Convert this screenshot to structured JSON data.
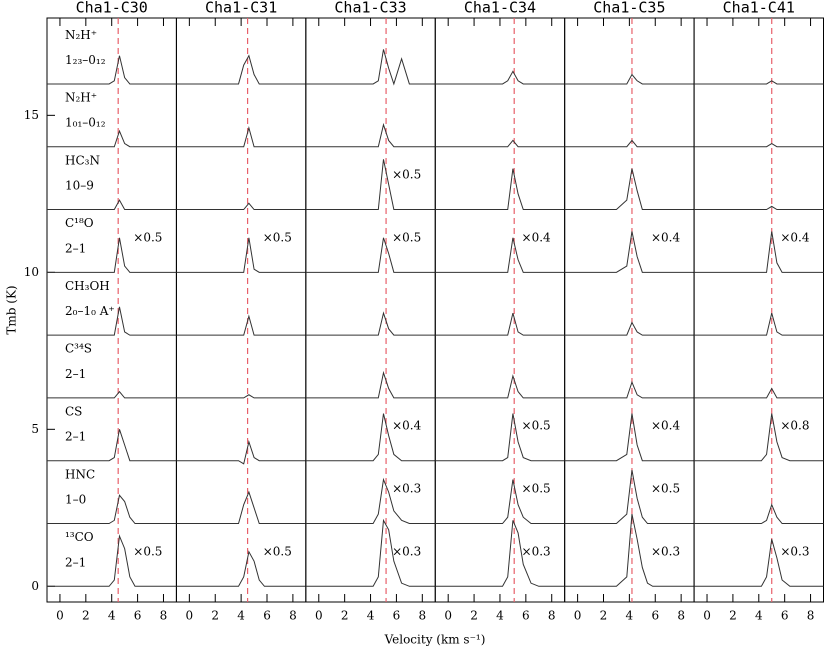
{
  "chart_data": [
    {
      "type": "line",
      "title": "Cha1-C30",
      "xlabel": "Velocity (km s⁻¹)",
      "ylabel": "Tmb (K)",
      "xlim": [
        -1,
        9
      ],
      "xticks": [
        0,
        2,
        4,
        6,
        8
      ],
      "ylim": [
        -0.5,
        18.1
      ],
      "yticks": [
        0,
        5,
        10,
        15
      ],
      "color": "#333333",
      "vline": 4.5,
      "vline_color": "#e8606a",
      "x": [
        -1,
        1,
        3,
        3.8,
        4.2,
        4.6,
        5.0,
        5.4,
        5.8,
        6.4,
        7,
        9
      ],
      "series": [
        {
          "name": "N₂H⁺",
          "transition": "1₂₃–0₁₂",
          "values": [
            16,
            16,
            16,
            16,
            16.1,
            16.9,
            16.2,
            16,
            16,
            16,
            16,
            16
          ]
        },
        {
          "name": "N₂H⁺",
          "transition": "1₀₁–0₁₂",
          "values": [
            14,
            14,
            14,
            14,
            14,
            14.5,
            14.1,
            14,
            14,
            14,
            14,
            14
          ]
        },
        {
          "name": "HC₃N",
          "transition": "10–9",
          "values": [
            12,
            12,
            12,
            12,
            12,
            12.3,
            12,
            12,
            12,
            12,
            12,
            12
          ]
        },
        {
          "name": "C¹⁸O",
          "transition": "2–1",
          "scale_label": "×0.5",
          "values": [
            10,
            10,
            10,
            10,
            10,
            11.1,
            10.2,
            10,
            10,
            10,
            10,
            10
          ]
        },
        {
          "name": "CH₃OH",
          "transition": "2₀–1₀ A⁺",
          "values": [
            8,
            8,
            8,
            8,
            8,
            8.9,
            8.1,
            8,
            8,
            8,
            8,
            8
          ]
        },
        {
          "name": "C³⁴S",
          "transition": "2–1",
          "values": [
            6,
            6,
            6,
            6,
            6,
            6.2,
            6,
            6,
            6,
            6,
            6,
            6
          ]
        },
        {
          "name": "CS",
          "transition": "2–1",
          "values": [
            4,
            4,
            4,
            4,
            4.1,
            5,
            4.5,
            4,
            4,
            4,
            4,
            4
          ]
        },
        {
          "name": "HNC",
          "transition": "1–0",
          "values": [
            2,
            2,
            2,
            2,
            2.1,
            2.9,
            2.7,
            2.2,
            2,
            2,
            2,
            2
          ]
        },
        {
          "name": "¹³CO",
          "transition": "2–1",
          "scale_label": "×0.5",
          "values": [
            0,
            0,
            0,
            0,
            0.2,
            1.6,
            1.2,
            0.3,
            0,
            0,
            0,
            0
          ]
        }
      ]
    },
    {
      "type": "line",
      "title": "Cha1-C31",
      "xlim": [
        -1,
        9
      ],
      "xticks": [
        0,
        2,
        4,
        6,
        8
      ],
      "ylim": [
        -0.5,
        18.1
      ],
      "color": "#333333",
      "vline": 4.5,
      "vline_color": "#e8606a",
      "x": [
        -1,
        1,
        3,
        3.8,
        4.2,
        4.6,
        5.0,
        5.4,
        5.8,
        6.4,
        7,
        9
      ],
      "series": [
        {
          "values": [
            16,
            16,
            16,
            16,
            16.6,
            16.9,
            16.3,
            16,
            16,
            16,
            16,
            16
          ]
        },
        {
          "values": [
            14,
            14,
            14,
            14,
            14,
            14.6,
            14,
            14,
            14,
            14,
            14,
            14
          ]
        },
        {
          "values": [
            12,
            12,
            12,
            12,
            12,
            12.2,
            12,
            12,
            12,
            12,
            12,
            12
          ]
        },
        {
          "scale_label": "×0.5",
          "values": [
            10,
            10,
            10,
            10,
            10,
            11.1,
            10.1,
            10,
            10,
            10,
            10,
            10
          ]
        },
        {
          "values": [
            8,
            8,
            8,
            8,
            8,
            8.6,
            8,
            8,
            8,
            8,
            8,
            8
          ]
        },
        {
          "values": [
            6,
            6,
            6,
            6,
            6,
            6.1,
            6,
            6,
            6,
            6,
            6,
            6
          ]
        },
        {
          "values": [
            4,
            4,
            4,
            4,
            3.9,
            4.6,
            4.1,
            4,
            4,
            4,
            4,
            4
          ]
        },
        {
          "values": [
            2,
            2,
            2,
            2,
            2.6,
            3,
            2.5,
            2,
            2,
            2,
            2,
            2
          ]
        },
        {
          "scale_label": "×0.5",
          "values": [
            0,
            0,
            0,
            0,
            0.3,
            1.1,
            0.8,
            0.2,
            0,
            0,
            0,
            0
          ]
        }
      ]
    },
    {
      "type": "line",
      "title": "Cha1-C33",
      "xlim": [
        -1,
        9
      ],
      "xticks": [
        0,
        2,
        4,
        6,
        8
      ],
      "ylim": [
        -0.5,
        18.1
      ],
      "color": "#333333",
      "vline": 5.2,
      "vline_color": "#e8606a",
      "x": [
        -1,
        1,
        3,
        3.8,
        4.2,
        4.6,
        5.0,
        5.4,
        5.8,
        6.4,
        7,
        9
      ],
      "series": [
        {
          "values": [
            16,
            16,
            16,
            16,
            16,
            16.1,
            17.1,
            16.5,
            16,
            16.8,
            16,
            16
          ]
        },
        {
          "values": [
            14,
            14,
            14,
            14,
            14,
            14,
            14.7,
            14.2,
            14,
            14,
            14,
            14
          ]
        },
        {
          "scale_label": "×0.5",
          "values": [
            12,
            12,
            12,
            12,
            12,
            12,
            13.6,
            12.8,
            12,
            12,
            12,
            12
          ]
        },
        {
          "scale_label": "×0.5",
          "values": [
            10,
            10,
            10,
            10,
            10,
            10,
            11.1,
            10.6,
            10,
            10,
            10,
            10
          ]
        },
        {
          "values": [
            8,
            8,
            8,
            8,
            8,
            8,
            8.7,
            8.2,
            8,
            8,
            8,
            8
          ]
        },
        {
          "values": [
            6,
            6,
            6,
            6,
            6,
            6,
            6.8,
            6.3,
            6,
            6,
            6,
            6
          ]
        },
        {
          "scale_label": "×0.4",
          "values": [
            4,
            4,
            4,
            4,
            4,
            4.2,
            5.5,
            4.8,
            4.2,
            4,
            4,
            4
          ]
        },
        {
          "scale_label": "×0.3",
          "values": [
            2,
            2,
            2,
            2,
            2,
            2.3,
            3.4,
            3,
            2.4,
            2.1,
            2,
            2
          ]
        },
        {
          "scale_label": "×0.3",
          "values": [
            0,
            0,
            0,
            0,
            0,
            0.3,
            2.1,
            1.8,
            0.8,
            0.1,
            0,
            0
          ]
        }
      ]
    },
    {
      "type": "line",
      "title": "Cha1-C34",
      "xlim": [
        -1,
        9
      ],
      "xticks": [
        0,
        2,
        4,
        6,
        8
      ],
      "ylim": [
        -0.5,
        18.1
      ],
      "color": "#333333",
      "vline": 5.1,
      "vline_color": "#e8606a",
      "x": [
        -1,
        1,
        3,
        3.8,
        4.2,
        4.6,
        5.0,
        5.4,
        5.8,
        6.4,
        7,
        9
      ],
      "series": [
        {
          "values": [
            16,
            16,
            16,
            16,
            16,
            16.1,
            16.4,
            16.1,
            16,
            16,
            16,
            16
          ]
        },
        {
          "values": [
            14,
            14,
            14,
            14,
            14,
            14,
            14.2,
            14,
            14,
            14,
            14,
            14
          ]
        },
        {
          "values": [
            12,
            12,
            12,
            12,
            12,
            12,
            13.3,
            12.5,
            12,
            12,
            12,
            12
          ]
        },
        {
          "scale_label": "×0.4",
          "values": [
            10,
            10,
            10,
            10,
            10,
            10,
            11.1,
            10.4,
            10,
            10,
            10,
            10
          ]
        },
        {
          "values": [
            8,
            8,
            8,
            8,
            8,
            8,
            8.7,
            8.1,
            8,
            8,
            8,
            8
          ]
        },
        {
          "values": [
            6,
            6,
            6,
            6,
            6,
            6,
            6.7,
            6.2,
            6,
            6,
            6,
            6
          ]
        },
        {
          "scale_label": "×0.5",
          "values": [
            4,
            4,
            4,
            4,
            4,
            4.1,
            5.5,
            4.6,
            4.1,
            4,
            4,
            4
          ]
        },
        {
          "scale_label": "×0.5",
          "values": [
            2,
            2,
            2,
            2,
            2,
            2.2,
            3.4,
            2.6,
            2.2,
            2,
            2,
            2
          ]
        },
        {
          "scale_label": "×0.3",
          "values": [
            0,
            0,
            0,
            0,
            0,
            0.3,
            2.1,
            1.7,
            0.7,
            0.1,
            0,
            0
          ]
        }
      ]
    },
    {
      "type": "line",
      "title": "Cha1-C35",
      "xlim": [
        -1,
        9
      ],
      "xticks": [
        0,
        2,
        4,
        6,
        8
      ],
      "ylim": [
        -0.5,
        18.1
      ],
      "color": "#333333",
      "vline": 4.2,
      "vline_color": "#e8606a",
      "x": [
        -1,
        1,
        3,
        3.8,
        4.2,
        4.6,
        5.0,
        5.4,
        5.8,
        6.4,
        7,
        9
      ],
      "series": [
        {
          "values": [
            16,
            16,
            16,
            16,
            16.3,
            16.1,
            16,
            16,
            16,
            16,
            16,
            16
          ]
        },
        {
          "values": [
            14,
            14,
            14,
            14,
            14.2,
            14,
            14,
            14,
            14,
            14,
            14,
            14
          ]
        },
        {
          "values": [
            12,
            12,
            12,
            12.3,
            13.3,
            12.6,
            12,
            12,
            12,
            12,
            12,
            12
          ]
        },
        {
          "scale_label": "×0.4",
          "values": [
            10,
            10,
            10,
            10.2,
            11.3,
            10.5,
            10,
            10,
            10,
            10,
            10,
            10
          ]
        },
        {
          "values": [
            8,
            8,
            8,
            8,
            8.4,
            8.1,
            8,
            8,
            8,
            8,
            8,
            8
          ]
        },
        {
          "values": [
            6,
            6,
            6,
            6,
            6.5,
            6.1,
            6,
            6,
            6,
            6,
            6,
            6
          ]
        },
        {
          "scale_label": "×0.4",
          "values": [
            4,
            4,
            4,
            4.2,
            5.5,
            4.5,
            4,
            4,
            4,
            4,
            4,
            4
          ]
        },
        {
          "scale_label": "×0.5",
          "values": [
            2,
            2,
            2,
            2.3,
            3.7,
            2.8,
            2.2,
            2,
            2,
            2,
            2,
            2
          ]
        },
        {
          "scale_label": "×0.3",
          "values": [
            0,
            0,
            0,
            0.3,
            2.3,
            1.5,
            0.6,
            0.1,
            0,
            0,
            0,
            0
          ]
        }
      ]
    },
    {
      "type": "line",
      "title": "Cha1-C41",
      "xlim": [
        -1,
        9
      ],
      "xticks": [
        0,
        2,
        4,
        6,
        8
      ],
      "ylim": [
        -0.5,
        18.1
      ],
      "color": "#333333",
      "vline": 5.0,
      "vline_color": "#e8606a",
      "x": [
        -1,
        1,
        3,
        3.8,
        4.2,
        4.6,
        5.0,
        5.4,
        5.8,
        6.4,
        7,
        9
      ],
      "series": [
        {
          "values": [
            16,
            16,
            16,
            16,
            16,
            16,
            16.1,
            16,
            16,
            16,
            16,
            16
          ]
        },
        {
          "values": [
            14,
            14,
            14,
            14,
            14,
            14,
            14.1,
            14,
            14,
            14,
            14,
            14
          ]
        },
        {
          "values": [
            12,
            12,
            12,
            12,
            12,
            12,
            12.1,
            12,
            12,
            12,
            12,
            12
          ]
        },
        {
          "scale_label": "×0.4",
          "values": [
            10,
            10,
            10,
            10,
            10,
            10,
            11.3,
            10.3,
            10,
            10,
            10,
            10
          ]
        },
        {
          "values": [
            8,
            8,
            8,
            8,
            8,
            8,
            8.7,
            8.1,
            8,
            8,
            8,
            8
          ]
        },
        {
          "values": [
            6,
            6,
            6,
            6,
            6,
            6,
            6.3,
            6,
            6,
            6,
            6,
            6
          ]
        },
        {
          "scale_label": "×0.8",
          "values": [
            4,
            4,
            4,
            4,
            4,
            4.2,
            5.5,
            4.6,
            4.1,
            4,
            4,
            4
          ]
        },
        {
          "values": [
            2,
            2,
            2,
            2,
            2,
            2.1,
            2.6,
            2.2,
            2,
            2,
            2,
            2
          ]
        },
        {
          "scale_label": "×0.3",
          "values": [
            0,
            0,
            0,
            0,
            0,
            0.3,
            1.5,
            0.9,
            0.2,
            0,
            0,
            0
          ]
        }
      ]
    }
  ]
}
